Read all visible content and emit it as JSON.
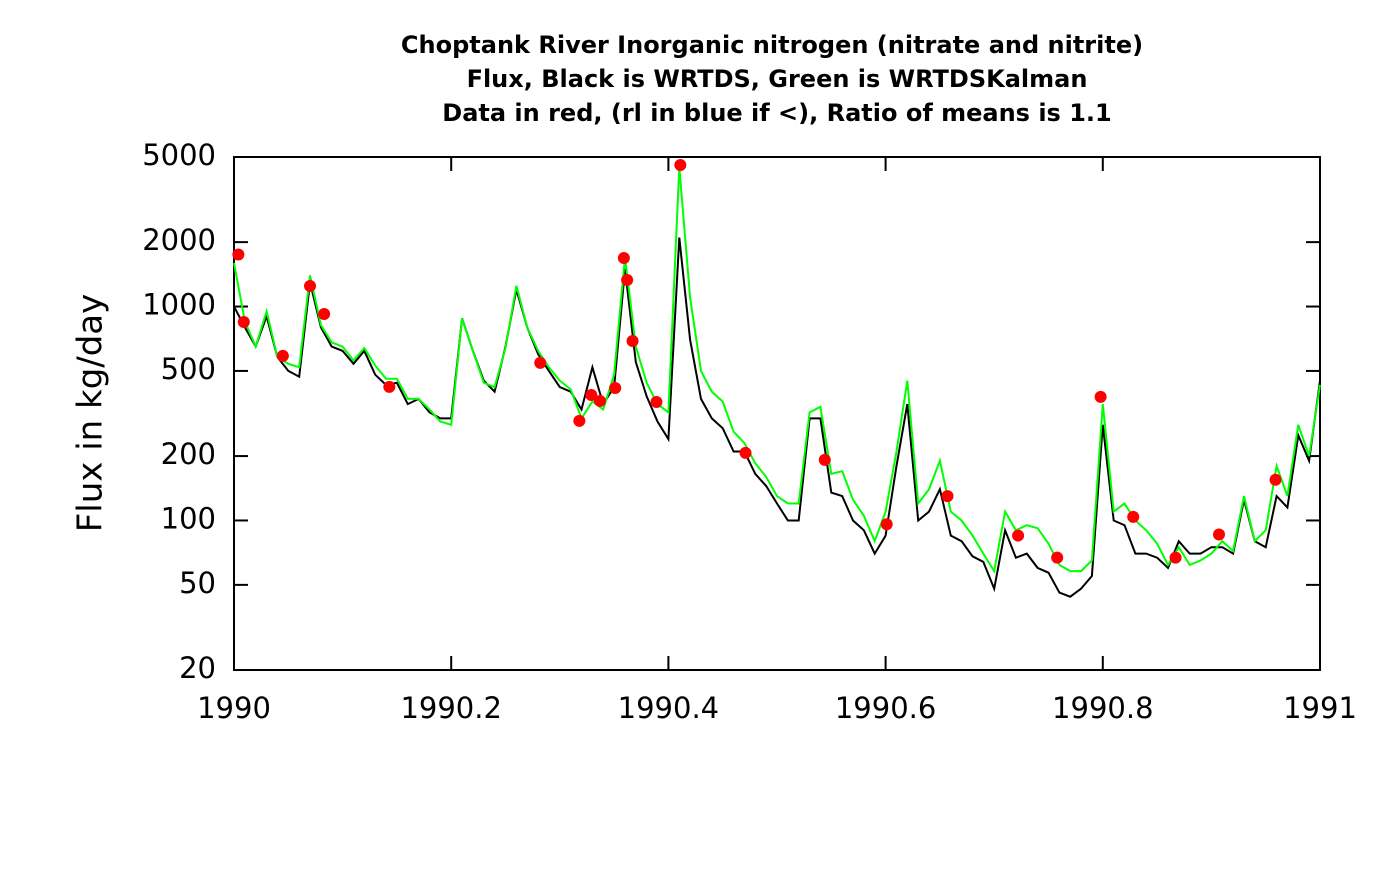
{
  "chart_data": {
    "type": "line",
    "title": [
      "Choptank River Inorganic nitrogen (nitrate and nitrite)",
      "Flux, Black is WRTDS, Green is WRTDSKalman",
      "Data in red, (rl in blue if <), Ratio of means is 1.1"
    ],
    "ylabel": "Flux in kg/day",
    "log_y": true,
    "xlim": [
      1990,
      1991
    ],
    "xticks": [
      1990,
      1990.2,
      1990.4,
      1990.6,
      1990.8,
      1991
    ],
    "ylim": [
      20,
      5000
    ],
    "yticks": [
      20,
      50,
      100,
      200,
      500,
      1000,
      2000,
      5000
    ],
    "x": [
      1990.0,
      1990.01,
      1990.02,
      1990.03,
      1990.04,
      1990.05,
      1990.06,
      1990.07,
      1990.08,
      1990.09,
      1990.1,
      1990.11,
      1990.12,
      1990.13,
      1990.14,
      1990.15,
      1990.16,
      1990.17,
      1990.18,
      1990.19,
      1990.2,
      1990.21,
      1990.22,
      1990.23,
      1990.24,
      1990.25,
      1990.26,
      1990.27,
      1990.28,
      1990.29,
      1990.3,
      1990.31,
      1990.32,
      1990.33,
      1990.34,
      1990.35,
      1990.36,
      1990.37,
      1990.38,
      1990.39,
      1990.4,
      1990.41,
      1990.42,
      1990.43,
      1990.44,
      1990.45,
      1990.46,
      1990.47,
      1990.48,
      1990.49,
      1990.5,
      1990.51,
      1990.52,
      1990.53,
      1990.54,
      1990.55,
      1990.56,
      1990.57,
      1990.58,
      1990.59,
      1990.6,
      1990.61,
      1990.62,
      1990.63,
      1990.64,
      1990.65,
      1990.66,
      1990.67,
      1990.68,
      1990.69,
      1990.7,
      1990.71,
      1990.72,
      1990.73,
      1990.74,
      1990.75,
      1990.76,
      1990.77,
      1990.78,
      1990.79,
      1990.8,
      1990.81,
      1990.82,
      1990.83,
      1990.84,
      1990.85,
      1990.86,
      1990.87,
      1990.88,
      1990.89,
      1990.9,
      1990.91,
      1990.92,
      1990.93,
      1990.94,
      1990.95,
      1990.96,
      1990.97,
      1990.98,
      1990.99,
      1991.0
    ],
    "series": [
      {
        "color": "#000000",
        "values": [
          1000,
          800,
          650,
          900,
          580,
          500,
          470,
          1300,
          800,
          650,
          620,
          540,
          620,
          480,
          430,
          440,
          350,
          370,
          320,
          300,
          300,
          880,
          620,
          450,
          400,
          650,
          1200,
          800,
          600,
          500,
          420,
          400,
          330,
          520,
          350,
          420,
          1500,
          550,
          380,
          290,
          240,
          2100,
          700,
          370,
          300,
          270,
          210,
          210,
          165,
          145,
          120,
          100,
          100,
          300,
          300,
          135,
          130,
          100,
          90,
          70,
          85,
          180,
          350,
          100,
          110,
          140,
          85,
          80,
          68,
          64,
          48,
          90,
          67,
          70,
          60,
          57,
          46,
          44,
          48,
          55,
          280,
          100,
          95,
          70,
          70,
          67,
          60,
          80,
          70,
          70,
          75,
          75,
          70,
          125,
          80,
          75,
          130,
          115,
          250,
          190,
          450
        ]
      },
      {
        "color": "#00ff00",
        "values": [
          1600,
          850,
          650,
          950,
          580,
          540,
          520,
          1400,
          820,
          680,
          650,
          560,
          640,
          530,
          460,
          460,
          370,
          370,
          330,
          290,
          280,
          880,
          620,
          440,
          420,
          640,
          1250,
          800,
          620,
          520,
          450,
          410,
          300,
          360,
          330,
          480,
          1700,
          650,
          440,
          350,
          320,
          4500,
          1100,
          500,
          400,
          360,
          260,
          230,
          185,
          160,
          130,
          120,
          120,
          320,
          340,
          165,
          170,
          125,
          105,
          80,
          110,
          210,
          450,
          120,
          140,
          190,
          110,
          100,
          85,
          70,
          58,
          110,
          90,
          95,
          92,
          78,
          62,
          58,
          58,
          65,
          350,
          110,
          120,
          100,
          90,
          78,
          62,
          75,
          62,
          65,
          70,
          80,
          72,
          130,
          80,
          90,
          180,
          130,
          280,
          200,
          430
        ]
      }
    ],
    "points": {
      "color": "#ff0000",
      "x": [
        1990.004,
        1990.009,
        1990.045,
        1990.07,
        1990.083,
        1990.143,
        1990.282,
        1990.318,
        1990.329,
        1990.337,
        1990.351,
        1990.359,
        1990.362,
        1990.367,
        1990.389,
        1990.411,
        1990.471,
        1990.544,
        1990.601,
        1990.657,
        1990.722,
        1990.758,
        1990.798,
        1990.828,
        1990.867,
        1990.907,
        1990.959
      ],
      "values": [
        1750,
        847,
        588,
        1248,
        923,
        421,
        545,
        292,
        386,
        362,
        416,
        1687,
        1331,
        690,
        358,
        4590,
        207,
        192,
        96,
        130,
        85,
        67,
        378,
        104,
        67,
        86,
        155
      ]
    }
  }
}
